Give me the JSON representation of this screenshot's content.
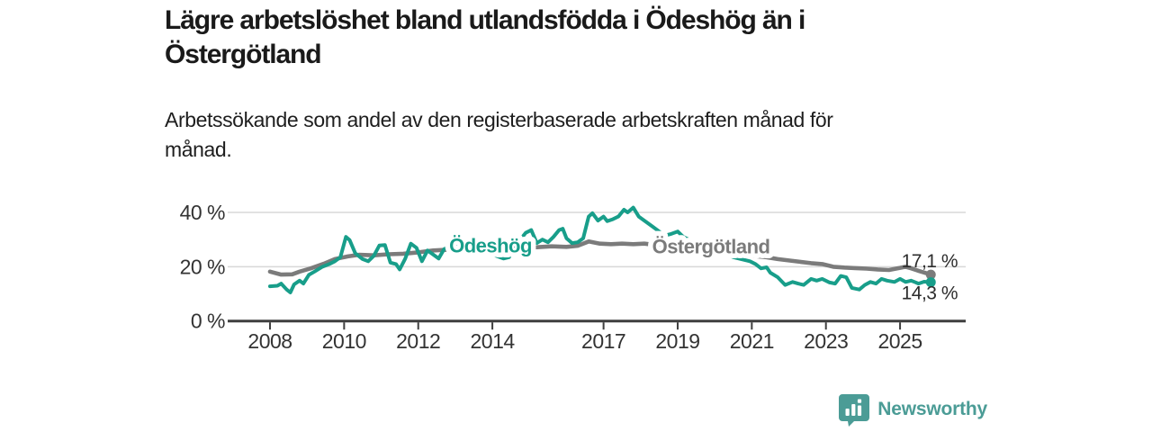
{
  "header": {
    "title": "Lägre arbetslöshet bland utlandsfödda i Ödeshög än i Östergötland",
    "title_lines": [
      "Lägre arbetslöshet bland utlandsfödda i Ödeshög än i",
      "Östergötland"
    ],
    "subtitle": "Arbetssökande som andel av den registerbaserade arbetskraften månad för månad.",
    "subtitle_lines": [
      "Arbetssökande som andel av den registerbaserade arbetskraften månad för",
      "månad."
    ]
  },
  "footer": {
    "brand": "Newsworthy",
    "logo_icon": "bar-chart-speech-bubble-icon",
    "brand_color": "#4b9c96"
  },
  "colors": {
    "odeshog_line": "#189e8a",
    "ostergotland_line": "#7b7b7b",
    "axis": "#3f3f3f",
    "grid": "#d8d8d8",
    "tick_text": "#333333",
    "end_label_text": "#2d2d2d",
    "title_text": "#1a1a1a",
    "background": "#ffffff"
  },
  "chart_data": {
    "type": "line",
    "title": "Lägre arbetslöshet bland utlandsfödda i Ödeshög än i Östergötland",
    "subtitle": "Arbetssökande som andel av den registerbaserade arbetskraften månad för månad.",
    "unit": "%",
    "xlabel": "",
    "ylabel": "",
    "x_ticks": [
      2008,
      2010,
      2012,
      2014,
      2017,
      2019,
      2021,
      2023,
      2025
    ],
    "y_ticks": [
      {
        "value": 0,
        "label": "0 %"
      },
      {
        "value": 20,
        "label": "20 %"
      },
      {
        "value": 40,
        "label": "40 %"
      }
    ],
    "x_range": [
      2007.85,
      2026.1
    ],
    "y_range": [
      0,
      44
    ],
    "grid": "horizontal-only",
    "legend_position": "inline-labels-on-lines",
    "series": [
      {
        "name": "Östergötland",
        "color": "#7b7b7b",
        "stroke_width": 4.6,
        "label": {
          "text": "Östergötland",
          "year": 2019.9,
          "value": 27.4
        },
        "end": {
          "label": "17,1 %",
          "value": 17.1,
          "side": "above"
        },
        "points": [
          [
            2008.0,
            18.2
          ],
          [
            2008.3,
            17.1
          ],
          [
            2008.6,
            17.2
          ],
          [
            2008.8,
            18.2
          ],
          [
            2009.1,
            19.4
          ],
          [
            2009.45,
            21.1
          ],
          [
            2009.75,
            22.8
          ],
          [
            2010.1,
            23.8
          ],
          [
            2010.4,
            24.4
          ],
          [
            2010.8,
            24.2
          ],
          [
            2011.2,
            24.6
          ],
          [
            2011.6,
            24.8
          ],
          [
            2012.0,
            25.3
          ],
          [
            2012.4,
            26.0
          ],
          [
            2012.8,
            26.3
          ],
          [
            2013.2,
            26.5
          ],
          [
            2013.6,
            26.3
          ],
          [
            2014.0,
            26.5
          ],
          [
            2014.4,
            26.8
          ],
          [
            2014.8,
            27.0
          ],
          [
            2015.2,
            27.2
          ],
          [
            2015.6,
            27.5
          ],
          [
            2016.0,
            27.3
          ],
          [
            2016.3,
            27.7
          ],
          [
            2016.6,
            29.3
          ],
          [
            2016.9,
            28.5
          ],
          [
            2017.2,
            28.3
          ],
          [
            2017.5,
            28.5
          ],
          [
            2017.8,
            28.3
          ],
          [
            2018.1,
            28.5
          ],
          [
            2018.4,
            28.0
          ],
          [
            2018.8,
            27.5
          ],
          [
            2019.2,
            27.0
          ],
          [
            2019.6,
            26.5
          ],
          [
            2020.0,
            26.0
          ],
          [
            2020.4,
            25.2
          ],
          [
            2020.8,
            24.4
          ],
          [
            2021.1,
            23.9
          ],
          [
            2021.4,
            23.5
          ],
          [
            2021.7,
            22.8
          ],
          [
            2022.0,
            22.3
          ],
          [
            2022.3,
            21.8
          ],
          [
            2022.6,
            21.3
          ],
          [
            2022.9,
            21.0
          ],
          [
            2023.2,
            20.0
          ],
          [
            2023.5,
            19.7
          ],
          [
            2023.8,
            19.5
          ],
          [
            2024.1,
            19.3
          ],
          [
            2024.4,
            19.0
          ],
          [
            2024.7,
            18.8
          ],
          [
            2025.0,
            19.6
          ],
          [
            2025.15,
            20.0
          ],
          [
            2025.3,
            19.4
          ],
          [
            2025.5,
            18.5
          ],
          [
            2025.83,
            17.1
          ]
        ]
      },
      {
        "name": "Ödeshög",
        "color": "#189e8a",
        "stroke_width": 4,
        "label": {
          "text": "Ödeshög",
          "year": 2013.95,
          "value": 27.8
        },
        "end": {
          "label": "14,3 %",
          "value": 14.3,
          "side": "below"
        },
        "points": [
          [
            2008.0,
            12.8
          ],
          [
            2008.2,
            13.0
          ],
          [
            2008.3,
            13.8
          ],
          [
            2008.45,
            11.6
          ],
          [
            2008.55,
            10.5
          ],
          [
            2008.65,
            13.5
          ],
          [
            2008.8,
            14.9
          ],
          [
            2008.9,
            13.8
          ],
          [
            2009.05,
            17.0
          ],
          [
            2009.2,
            18.2
          ],
          [
            2009.4,
            19.9
          ],
          [
            2009.6,
            21.0
          ],
          [
            2009.75,
            22.0
          ],
          [
            2009.9,
            23.5
          ],
          [
            2010.05,
            31.0
          ],
          [
            2010.15,
            29.8
          ],
          [
            2010.3,
            25.0
          ],
          [
            2010.5,
            22.8
          ],
          [
            2010.65,
            22.0
          ],
          [
            2010.8,
            24.0
          ],
          [
            2010.95,
            27.8
          ],
          [
            2011.1,
            28.0
          ],
          [
            2011.25,
            21.5
          ],
          [
            2011.4,
            21.0
          ],
          [
            2011.5,
            19.0
          ],
          [
            2011.65,
            23.0
          ],
          [
            2011.8,
            28.5
          ],
          [
            2011.95,
            27.0
          ],
          [
            2012.1,
            22.0
          ],
          [
            2012.25,
            26.0
          ],
          [
            2012.4,
            24.5
          ],
          [
            2012.55,
            23.0
          ],
          [
            2012.7,
            26.5
          ],
          [
            2012.85,
            27.5
          ],
          [
            2013.0,
            28.0
          ],
          [
            2013.2,
            27.0
          ],
          [
            2013.5,
            28.0
          ],
          [
            2013.8,
            26.0
          ],
          [
            2014.0,
            24.5
          ],
          [
            2014.3,
            23.0
          ],
          [
            2014.45,
            23.5
          ],
          [
            2014.6,
            27.0
          ],
          [
            2014.75,
            30.0
          ],
          [
            2014.9,
            32.5
          ],
          [
            2015.05,
            33.5
          ],
          [
            2015.2,
            28.7
          ],
          [
            2015.35,
            30.0
          ],
          [
            2015.5,
            29.0
          ],
          [
            2015.65,
            31.0
          ],
          [
            2015.8,
            33.5
          ],
          [
            2015.9,
            34.0
          ],
          [
            2016.0,
            30.5
          ],
          [
            2016.15,
            28.7
          ],
          [
            2016.3,
            29.0
          ],
          [
            2016.45,
            30.5
          ],
          [
            2016.6,
            38.5
          ],
          [
            2016.7,
            39.7
          ],
          [
            2016.85,
            37.0
          ],
          [
            2017.0,
            38.5
          ],
          [
            2017.1,
            36.8
          ],
          [
            2017.25,
            37.5
          ],
          [
            2017.4,
            38.5
          ],
          [
            2017.55,
            41.0
          ],
          [
            2017.65,
            40.0
          ],
          [
            2017.8,
            41.8
          ],
          [
            2017.95,
            38.5
          ],
          [
            2018.1,
            37.0
          ],
          [
            2018.3,
            35.0
          ],
          [
            2018.5,
            33.0
          ],
          [
            2018.65,
            31.5
          ],
          [
            2018.8,
            32.0
          ],
          [
            2019.0,
            33.0
          ],
          [
            2019.15,
            31.0
          ],
          [
            2019.3,
            30.0
          ],
          [
            2019.6,
            28.0
          ],
          [
            2019.9,
            26.5
          ],
          [
            2020.2,
            25.0
          ],
          [
            2020.5,
            23.5
          ],
          [
            2020.8,
            22.5
          ],
          [
            2020.95,
            22.0
          ],
          [
            2021.1,
            21.0
          ],
          [
            2021.25,
            19.4
          ],
          [
            2021.4,
            19.8
          ],
          [
            2021.5,
            17.8
          ],
          [
            2021.7,
            16.1
          ],
          [
            2021.9,
            13.3
          ],
          [
            2022.1,
            14.4
          ],
          [
            2022.25,
            13.8
          ],
          [
            2022.4,
            13.3
          ],
          [
            2022.6,
            15.5
          ],
          [
            2022.75,
            14.9
          ],
          [
            2022.9,
            15.5
          ],
          [
            2023.1,
            14.2
          ],
          [
            2023.25,
            13.8
          ],
          [
            2023.4,
            16.6
          ],
          [
            2023.55,
            16.1
          ],
          [
            2023.7,
            12.2
          ],
          [
            2023.9,
            11.6
          ],
          [
            2024.05,
            13.3
          ],
          [
            2024.2,
            14.4
          ],
          [
            2024.35,
            13.8
          ],
          [
            2024.5,
            15.5
          ],
          [
            2024.65,
            14.9
          ],
          [
            2024.85,
            14.4
          ],
          [
            2025.0,
            15.5
          ],
          [
            2025.15,
            14.4
          ],
          [
            2025.3,
            14.9
          ],
          [
            2025.5,
            13.8
          ],
          [
            2025.65,
            14.5
          ],
          [
            2025.83,
            14.3
          ]
        ]
      }
    ]
  }
}
